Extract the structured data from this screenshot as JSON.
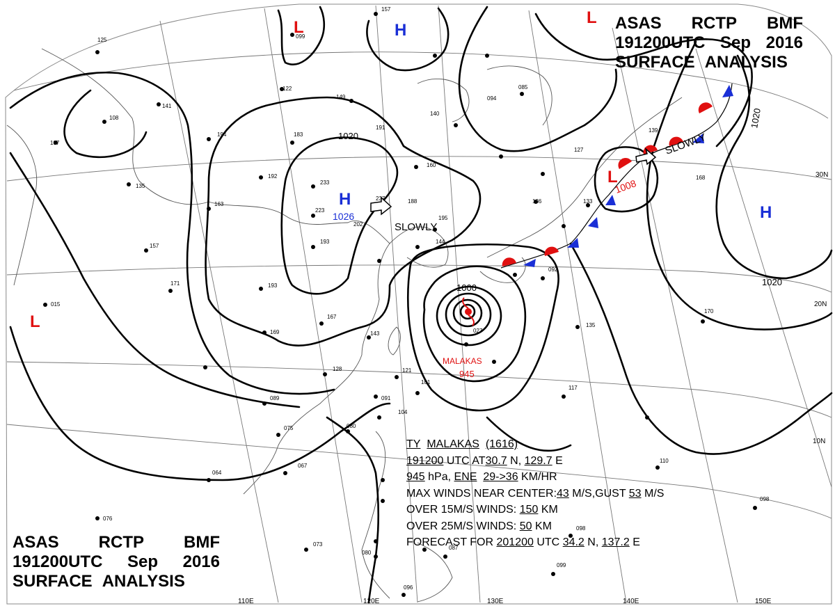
{
  "header": {
    "line1": [
      "ASAS",
      "RCTP",
      "BMF"
    ],
    "line2": [
      "191200UTC",
      "Sep",
      "2016"
    ],
    "line3": [
      "SURFACE",
      "ANALYSIS"
    ]
  },
  "typhoon_info": {
    "name_line": {
      "prefix": "TY",
      "name": "MALAKAS",
      "number": "(1616)"
    },
    "position_line": {
      "time": "191200",
      "utc": "UTC",
      "at": "AT",
      "lat": "30.7",
      "lat_unit": "N,",
      "lon": "129.7",
      "lon_unit": "E"
    },
    "motion_line": {
      "pressure": "945",
      "unit": "hPa,",
      "direction": "ENE",
      "speed": "29->36",
      "speed_unit": "KM/HR"
    },
    "winds_line": {
      "text": "MAX WINDS NEAR CENTER:",
      "max": "43",
      "mid": "M/S,GUST",
      "gust": "53",
      "unit": "M/S"
    },
    "r15_line": {
      "text": "OVER 15M/S WINDS:",
      "value": "150",
      "unit": "KM"
    },
    "r25_line": {
      "text": "OVER 25M/S WINDS:",
      "value": "50",
      "unit": "KM"
    },
    "forecast_line": {
      "text": "FORECAST FOR",
      "time": "201200",
      "utc": "UTC",
      "lat": "34.2",
      "lat_unit": "N,",
      "lon": "137.2",
      "lon_unit": "E"
    }
  },
  "map_labels": {
    "typhoon_name": "MALAKAS",
    "typhoon_pressure": "945",
    "high_center_pressure": "1026",
    "low_center_pressure": "1008",
    "isobars": [
      "1020",
      "1000",
      "1020",
      "1020"
    ],
    "movement": [
      "SLOWLY",
      "SLOWLY"
    ],
    "latitudes": [
      "30N",
      "20N",
      "10N"
    ],
    "longitudes": [
      "110E",
      "120E",
      "130E",
      "140E",
      "150E"
    ]
  },
  "pressure_centers": [
    {
      "type": "H",
      "color": "#1a2fd6"
    },
    {
      "type": "H",
      "color": "#1a2fd6"
    },
    {
      "type": "H",
      "color": "#1a2fd6"
    },
    {
      "type": "L",
      "color": "#e01010"
    },
    {
      "type": "L",
      "color": "#e01010"
    },
    {
      "type": "L",
      "color": "#e01010"
    },
    {
      "type": "L",
      "color": "#e01010"
    }
  ],
  "colors": {
    "warm_front": "#e01010",
    "cold_front": "#1a2fd6",
    "isobar": "#000000",
    "coast": "#555555",
    "grid": "#777777"
  }
}
